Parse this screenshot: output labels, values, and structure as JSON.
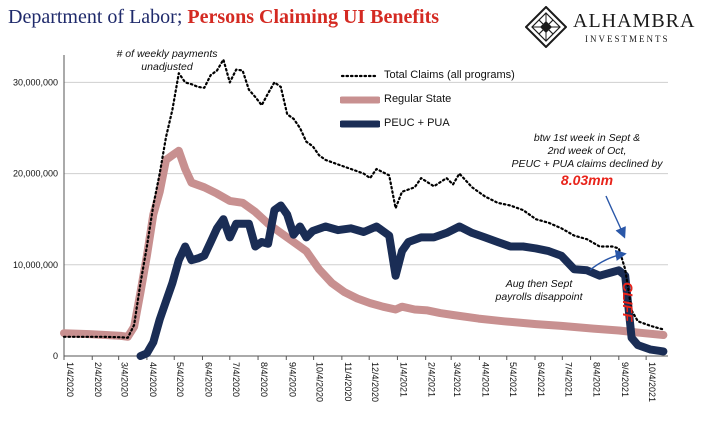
{
  "title": {
    "main": "Department of Labor",
    "separator": "; ",
    "accent": "Persons Claiming UI Benefits"
  },
  "logo": {
    "name": "ALHAMBRA",
    "subtitle": "INVESTMENTS",
    "icon": "diamond-lattice-icon"
  },
  "colors": {
    "title": "#1f2a6b",
    "accent": "#d42a22",
    "total": "#000000",
    "regular": "#c89090",
    "peuc": "#1a2d55",
    "cliff": "#e8231a"
  },
  "annotations": {
    "unadjusted": [
      "# of weekly payments",
      "unadjusted"
    ],
    "decline": [
      "btw 1st week in Sept &",
      "2nd week of Oct,",
      "PEUC + PUA claims declined by"
    ],
    "decline_value": "8.03mm",
    "payrolls": [
      "Aug then Sept",
      "payrolls  disappoint"
    ],
    "cliff": "CLIFF"
  },
  "chart_data": {
    "type": "line",
    "title": "Department of Labor; Persons Claiming UI Benefits",
    "ylim": [
      0,
      33000000
    ],
    "yticks": [
      0,
      10000000,
      20000000,
      30000000
    ],
    "ytick_labels": [
      "0",
      "10,000,000",
      "20,000,000",
      "30,000,000"
    ],
    "grid": true,
    "legend_position": "top-center",
    "x_labels": [
      "1/4/2020",
      "2/4/2020",
      "3/4/2020",
      "4/4/2020",
      "5/4/2020",
      "6/4/2020",
      "7/4/2020",
      "8/4/2020",
      "9/4/2020",
      "10/4/2020",
      "11/4/2020",
      "12/4/2020",
      "1/4/2021",
      "2/4/2021",
      "3/4/2021",
      "4/4/2021",
      "5/4/2021",
      "6/4/2021",
      "7/4/2021",
      "8/4/2021",
      "9/4/2021",
      "10/4/2021"
    ],
    "series": [
      {
        "name": "Total Claims (all programs)",
        "style": "dotted",
        "points": [
          [
            "2020-01-04",
            2100000
          ],
          [
            "2020-01-25",
            2100000
          ],
          [
            "2020-02-15",
            2100000
          ],
          [
            "2020-03-07",
            2050000
          ],
          [
            "2020-03-14",
            2000000
          ],
          [
            "2020-03-21",
            3400000
          ],
          [
            "2020-03-28",
            8000000
          ],
          [
            "2020-04-04",
            12000000
          ],
          [
            "2020-04-11",
            16500000
          ],
          [
            "2020-04-18",
            20000000
          ],
          [
            "2020-04-25",
            24000000
          ],
          [
            "2020-05-02",
            27000000
          ],
          [
            "2020-05-09",
            31000000
          ],
          [
            "2020-05-16",
            30000000
          ],
          [
            "2020-05-23",
            29800000
          ],
          [
            "2020-05-30",
            29500000
          ],
          [
            "2020-06-06",
            29400000
          ],
          [
            "2020-06-13",
            30800000
          ],
          [
            "2020-06-20",
            31300000
          ],
          [
            "2020-06-27",
            32500000
          ],
          [
            "2020-07-04",
            30000000
          ],
          [
            "2020-07-11",
            31400000
          ],
          [
            "2020-07-18",
            31300000
          ],
          [
            "2020-07-25",
            29200000
          ],
          [
            "2020-08-01",
            28400000
          ],
          [
            "2020-08-08",
            27500000
          ],
          [
            "2020-08-15",
            28800000
          ],
          [
            "2020-08-22",
            30000000
          ],
          [
            "2020-08-29",
            29500000
          ],
          [
            "2020-09-05",
            26500000
          ],
          [
            "2020-09-12",
            26000000
          ],
          [
            "2020-09-19",
            25000000
          ],
          [
            "2020-09-26",
            23500000
          ],
          [
            "2020-10-03",
            23000000
          ],
          [
            "2020-10-10",
            22000000
          ],
          [
            "2020-10-17",
            21500000
          ],
          [
            "2020-10-31",
            21000000
          ],
          [
            "2020-11-14",
            20500000
          ],
          [
            "2020-11-28",
            20000000
          ],
          [
            "2020-12-05",
            19500000
          ],
          [
            "2020-12-12",
            20500000
          ],
          [
            "2020-12-26",
            19800000
          ],
          [
            "2021-01-02",
            16200000
          ],
          [
            "2021-01-09",
            18000000
          ],
          [
            "2021-01-23",
            18500000
          ],
          [
            "2021-01-30",
            19500000
          ],
          [
            "2021-02-13",
            18600000
          ],
          [
            "2021-02-27",
            19500000
          ],
          [
            "2021-03-06",
            18800000
          ],
          [
            "2021-03-13",
            20000000
          ],
          [
            "2021-03-27",
            18500000
          ],
          [
            "2021-04-10",
            17500000
          ],
          [
            "2021-04-24",
            16800000
          ],
          [
            "2021-05-08",
            16500000
          ],
          [
            "2021-05-22",
            16000000
          ],
          [
            "2021-06-05",
            15000000
          ],
          [
            "2021-06-19",
            14600000
          ],
          [
            "2021-07-03",
            14000000
          ],
          [
            "2021-07-17",
            13200000
          ],
          [
            "2021-07-31",
            12800000
          ],
          [
            "2021-08-14",
            12000000
          ],
          [
            "2021-08-28",
            12000000
          ],
          [
            "2021-09-04",
            11800000
          ],
          [
            "2021-09-11",
            9500000
          ],
          [
            "2021-09-18",
            5000000
          ],
          [
            "2021-09-25",
            3800000
          ],
          [
            "2021-10-09",
            3300000
          ],
          [
            "2021-10-23",
            2900000
          ]
        ]
      },
      {
        "name": "Regular State",
        "style": "thick",
        "points": [
          [
            "2020-01-04",
            2500000
          ],
          [
            "2020-02-01",
            2400000
          ],
          [
            "2020-03-07",
            2200000
          ],
          [
            "2020-03-14",
            2100000
          ],
          [
            "2020-03-21",
            3200000
          ],
          [
            "2020-03-28",
            7000000
          ],
          [
            "2020-04-04",
            11000000
          ],
          [
            "2020-04-11",
            15500000
          ],
          [
            "2020-04-18",
            18000000
          ],
          [
            "2020-04-25",
            21500000
          ],
          [
            "2020-05-02",
            22000000
          ],
          [
            "2020-05-09",
            22500000
          ],
          [
            "2020-05-16",
            20500000
          ],
          [
            "2020-05-23",
            19000000
          ],
          [
            "2020-06-06",
            18500000
          ],
          [
            "2020-06-20",
            17800000
          ],
          [
            "2020-07-04",
            17000000
          ],
          [
            "2020-07-18",
            16800000
          ],
          [
            "2020-08-01",
            15800000
          ],
          [
            "2020-08-15",
            14500000
          ],
          [
            "2020-08-29",
            13500000
          ],
          [
            "2020-09-12",
            12500000
          ],
          [
            "2020-09-26",
            11500000
          ],
          [
            "2020-10-10",
            9500000
          ],
          [
            "2020-10-24",
            8000000
          ],
          [
            "2020-11-07",
            7000000
          ],
          [
            "2020-11-21",
            6300000
          ],
          [
            "2020-12-05",
            5800000
          ],
          [
            "2020-12-19",
            5400000
          ],
          [
            "2021-01-02",
            5100000
          ],
          [
            "2021-01-09",
            5400000
          ],
          [
            "2021-01-23",
            5100000
          ],
          [
            "2021-02-06",
            5000000
          ],
          [
            "2021-02-20",
            4700000
          ],
          [
            "2021-03-06",
            4500000
          ],
          [
            "2021-04-03",
            4100000
          ],
          [
            "2021-05-01",
            3800000
          ],
          [
            "2021-06-05",
            3500000
          ],
          [
            "2021-07-03",
            3300000
          ],
          [
            "2021-08-07",
            3000000
          ],
          [
            "2021-09-04",
            2800000
          ],
          [
            "2021-10-02",
            2500000
          ],
          [
            "2021-10-23",
            2300000
          ]
        ]
      },
      {
        "name": "PEUC + PUA",
        "style": "thick",
        "points": [
          [
            "2020-03-28",
            0
          ],
          [
            "2020-04-04",
            300000
          ],
          [
            "2020-04-11",
            1500000
          ],
          [
            "2020-04-18",
            4000000
          ],
          [
            "2020-04-25",
            6000000
          ],
          [
            "2020-05-02",
            8000000
          ],
          [
            "2020-05-09",
            10500000
          ],
          [
            "2020-05-16",
            12000000
          ],
          [
            "2020-05-23",
            10500000
          ],
          [
            "2020-05-30",
            10700000
          ],
          [
            "2020-06-06",
            11000000
          ],
          [
            "2020-06-13",
            12500000
          ],
          [
            "2020-06-20",
            14000000
          ],
          [
            "2020-06-27",
            15000000
          ],
          [
            "2020-07-04",
            13000000
          ],
          [
            "2020-07-11",
            14500000
          ],
          [
            "2020-07-18",
            14500000
          ],
          [
            "2020-07-25",
            14500000
          ],
          [
            "2020-08-01",
            12000000
          ],
          [
            "2020-08-08",
            12500000
          ],
          [
            "2020-08-15",
            12300000
          ],
          [
            "2020-08-22",
            16000000
          ],
          [
            "2020-08-29",
            16500000
          ],
          [
            "2020-09-05",
            15500000
          ],
          [
            "2020-09-12",
            13300000
          ],
          [
            "2020-09-19",
            14200000
          ],
          [
            "2020-09-26",
            13000000
          ],
          [
            "2020-10-03",
            13700000
          ],
          [
            "2020-10-17",
            14200000
          ],
          [
            "2020-10-31",
            13800000
          ],
          [
            "2020-11-14",
            14000000
          ],
          [
            "2020-11-28",
            13600000
          ],
          [
            "2020-12-12",
            14200000
          ],
          [
            "2020-12-26",
            13200000
          ],
          [
            "2021-01-02",
            8800000
          ],
          [
            "2021-01-09",
            11500000
          ],
          [
            "2021-01-16",
            12500000
          ],
          [
            "2021-01-30",
            13000000
          ],
          [
            "2021-02-13",
            13000000
          ],
          [
            "2021-02-27",
            13500000
          ],
          [
            "2021-03-13",
            14200000
          ],
          [
            "2021-03-27",
            13500000
          ],
          [
            "2021-04-10",
            13000000
          ],
          [
            "2021-04-24",
            12500000
          ],
          [
            "2021-05-08",
            12000000
          ],
          [
            "2021-05-22",
            12000000
          ],
          [
            "2021-06-05",
            11800000
          ],
          [
            "2021-06-19",
            11500000
          ],
          [
            "2021-07-03",
            11000000
          ],
          [
            "2021-07-17",
            9500000
          ],
          [
            "2021-07-31",
            9400000
          ],
          [
            "2021-08-14",
            8800000
          ],
          [
            "2021-08-28",
            9200000
          ],
          [
            "2021-09-04",
            9400000
          ],
          [
            "2021-09-11",
            8800000
          ],
          [
            "2021-09-18",
            2000000
          ],
          [
            "2021-09-25",
            1200000
          ],
          [
            "2021-10-09",
            700000
          ],
          [
            "2021-10-23",
            500000
          ]
        ]
      }
    ]
  }
}
